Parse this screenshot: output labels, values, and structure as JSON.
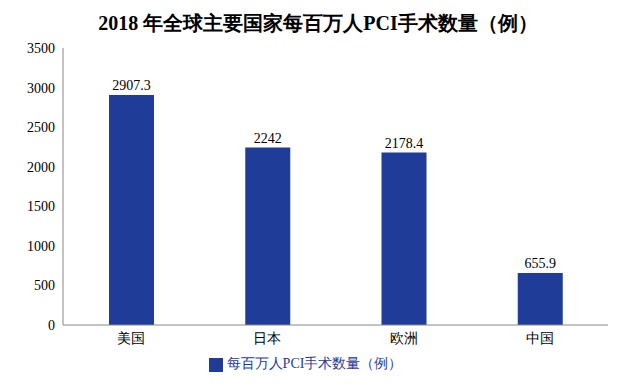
{
  "chart_data": {
    "type": "bar",
    "title": "2018 年全球主要国家每百万人PCI手术数量（例）",
    "categories": [
      "美国",
      "日本",
      "欧洲",
      "中国"
    ],
    "series": [
      {
        "name": "每百万人PCI手术数量（例）",
        "color": "#1f3c99",
        "values": [
          2907.3,
          2242,
          2178.4,
          655.9
        ]
      }
    ],
    "ylim": [
      0,
      3500
    ],
    "yticks": [
      0,
      500,
      1000,
      1500,
      2000,
      2500,
      3000,
      3500
    ],
    "grid": false,
    "legend": "bottom",
    "data_labels": true
  }
}
